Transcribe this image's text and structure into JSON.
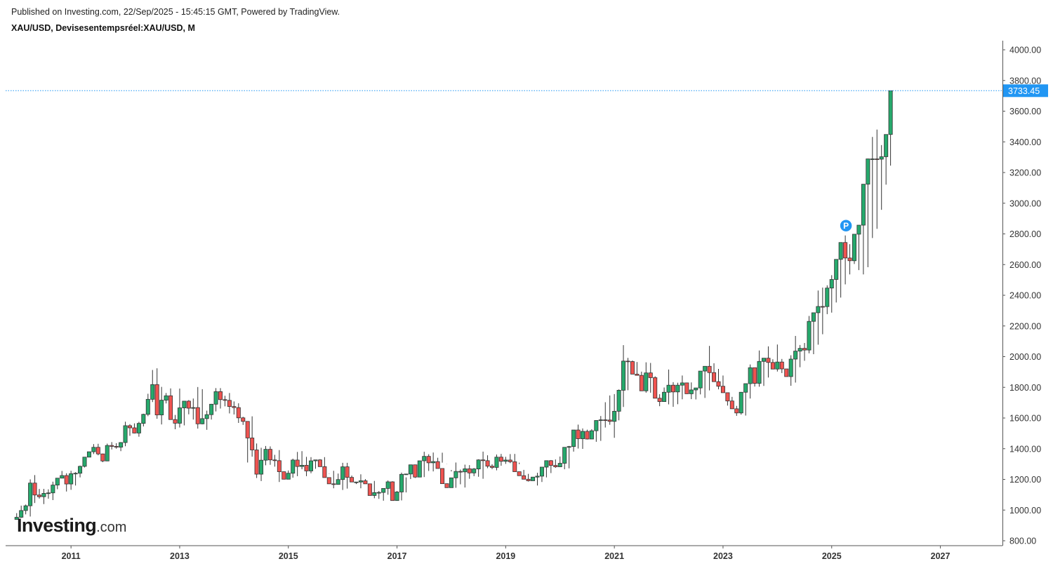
{
  "header": {
    "published": "Published on Investing.com, 22/Sep/2025 - 15:45:15 GMT, Powered by TradingView.",
    "symbol_line": "XAU/USD, Devisesentempsréel:XAU/USD, M"
  },
  "logo": {
    "main": "Investing",
    "suffix": ".com"
  },
  "colors": {
    "up": "#26a96c",
    "down": "#ef5350",
    "last_price_bg": "#2196f3",
    "axis": "#888888"
  },
  "chart_data": {
    "type": "candlestick",
    "interval": "M",
    "symbol": "XAU/USD",
    "ylim": [
      740,
      4080
    ],
    "y_ticks": [
      "800.00",
      "1000.00",
      "1200.00",
      "1400.00",
      "1600.00",
      "1800.00",
      "2000.00",
      "2200.00",
      "2400.00",
      "2600.00",
      "2800.00",
      "3000.00",
      "3200.00",
      "3400.00",
      "3600.00",
      "3800.00",
      "4000.00"
    ],
    "x_ticks": [
      "2011",
      "2013",
      "2015",
      "2017",
      "2019",
      "2021",
      "2023",
      "2025",
      "2027"
    ],
    "last_price": 3733.45,
    "last_price_label": "3733.45",
    "marker_label": "P",
    "marker_date": "2025-04",
    "closes": [
      953,
      997,
      1028,
      1176,
      1098,
      1087,
      1109,
      1112,
      1163,
      1208,
      1225,
      1170,
      1237,
      1240,
      1285,
      1345,
      1380,
      1409,
      1366,
      1320,
      1421,
      1415,
      1410,
      1440,
      1550,
      1536,
      1502,
      1565,
      1624,
      1722,
      1818,
      1620,
      1716,
      1745,
      1590,
      1566,
      1666,
      1710,
      1664,
      1668,
      1562,
      1596,
      1622,
      1690,
      1772,
      1720,
      1715,
      1675,
      1668,
      1601,
      1578,
      1470,
      1392,
      1234,
      1325,
      1396,
      1327,
      1322,
      1250,
      1201,
      1240,
      1326,
      1284,
      1292,
      1255,
      1321,
      1327,
      1283,
      1212,
      1171,
      1167,
      1199,
      1282,
      1213,
      1183,
      1183,
      1191,
      1171,
      1095,
      1114,
      1115,
      1141,
      1184,
      1062,
      1118,
      1233,
      1235,
      1295,
      1215,
      1321,
      1350,
      1308,
      1316,
      1271,
      1172,
      1146,
      1210,
      1252,
      1249,
      1269,
      1242,
      1268,
      1327,
      1322,
      1286,
      1278,
      1345,
      1318,
      1326,
      1315,
      1250,
      1224,
      1201,
      1191,
      1215,
      1221,
      1280,
      1322,
      1291,
      1282,
      1305,
      1409,
      1414,
      1522,
      1465,
      1513,
      1463,
      1517,
      1584,
      1588,
      1587,
      1578,
      1644,
      1781,
      1971,
      1968,
      1886,
      1878,
      1777,
      1894,
      1863,
      1729,
      1707,
      1768,
      1814,
      1770,
      1814,
      1829,
      1758,
      1783,
      1796,
      1906,
      1937,
      1896,
      1837,
      1807,
      1765,
      1711,
      1660,
      1633,
      1768,
      1824,
      1928,
      1826,
      1969,
      1990,
      1962,
      1919,
      1965,
      1920,
      1870,
      1984,
      2036,
      2054,
      2043,
      2230,
      2286,
      2327,
      2326,
      2447,
      2503,
      2634,
      2744,
      2643,
      2625,
      2798,
      2857,
      3124,
      3289,
      3289,
      3287,
      3303,
      3448,
      3733
    ],
    "highs": [
      980,
      1029,
      1036,
      1200,
      1228,
      1138,
      1138,
      1135,
      1185,
      1208,
      1255,
      1240,
      1256,
      1247,
      1290,
      1346,
      1380,
      1430,
      1432,
      1368,
      1433,
      1443,
      1436,
      1443,
      1576,
      1560,
      1565,
      1575,
      1628,
      1758,
      1913,
      1924,
      1803,
      1763,
      1793,
      1620,
      1792,
      1690,
      1717,
      1727,
      1802,
      1788,
      1648,
      1692,
      1795,
      1795,
      1745,
      1763,
      1708,
      1696,
      1608,
      1495,
      1611,
      1434,
      1406,
      1418,
      1415,
      1360,
      1391,
      1251,
      1258,
      1335,
      1379,
      1384,
      1347,
      1345,
      1327,
      1332,
      1345,
      1237,
      1256,
      1238,
      1308,
      1308,
      1225,
      1184,
      1233,
      1202,
      1169,
      1190,
      1124,
      1142,
      1193,
      1188,
      1124,
      1244,
      1213,
      1295,
      1270,
      1321,
      1380,
      1364,
      1375,
      1341,
      1374,
      1302,
      1252,
      1310,
      1264,
      1296,
      1293,
      1274,
      1331,
      1381,
      1357,
      1299,
      1362,
      1366,
      1347,
      1365,
      1366,
      1309,
      1262,
      1236,
      1215,
      1243,
      1244,
      1322,
      1326,
      1330,
      1349,
      1383,
      1418,
      1451,
      1557,
      1532,
      1524,
      1527,
      1564,
      1613,
      1703,
      1747,
      1756,
      1786,
      2075,
      1992,
      1975,
      1965,
      1902,
      1963,
      1959,
      1872,
      1755,
      1799,
      1916,
      1834,
      1830,
      1877,
      1820,
      1832,
      1787,
      1828,
      1915,
      2070,
      1957,
      1920,
      1877,
      1723,
      1738,
      1679,
      1714,
      1786,
      1949,
      1829,
      2040,
      1984,
      2067,
      1983,
      2079,
      1985,
      1887,
      2009,
      2135,
      2076,
      2089,
      2265,
      2284,
      2431,
      2450,
      2465,
      2531,
      2633,
      2690,
      2790,
      2733,
      2722,
      2817,
      2954,
      3167,
      3432,
      3480,
      3379,
      3391,
      3452,
      3507,
      3759
    ],
    "lows": [
      939,
      949,
      972,
      958,
      1046,
      1075,
      1039,
      1074,
      1065,
      1136,
      1218,
      1121,
      1132,
      1160,
      1213,
      1278,
      1368,
      1365,
      1357,
      1312,
      1338,
      1395,
      1400,
      1384,
      1416,
      1484,
      1500,
      1478,
      1545,
      1612,
      1704,
      1595,
      1558,
      1695,
      1684,
      1527,
      1538,
      1552,
      1624,
      1590,
      1531,
      1559,
      1523,
      1590,
      1643,
      1662,
      1676,
      1630,
      1623,
      1568,
      1555,
      1310,
      1348,
      1209,
      1189,
      1292,
      1295,
      1283,
      1183,
      1202,
      1206,
      1211,
      1221,
      1266,
      1221,
      1240,
      1269,
      1307,
      1274,
      1239,
      1142,
      1167,
      1131,
      1140,
      1195,
      1170,
      1142,
      1181,
      1131,
      1077,
      1073,
      1061,
      1100,
      1088,
      1077,
      1063,
      1115,
      1202,
      1209,
      1216,
      1215,
      1255,
      1252,
      1302,
      1309,
      1303,
      1261,
      1145,
      1168,
      1147,
      1204,
      1221,
      1217,
      1204,
      1273,
      1267,
      1259,
      1289,
      1301,
      1306,
      1282,
      1300,
      1210,
      1186,
      1208,
      1160,
      1183,
      1213,
      1241,
      1275,
      1280,
      1266,
      1272,
      1381,
      1401,
      1399,
      1460,
      1480,
      1445,
      1451,
      1538,
      1556,
      1471,
      1585,
      1672,
      1781,
      1900,
      1877,
      1848,
      1765,
      1765,
      1786,
      1677,
      1743,
      1689,
      1673,
      1690,
      1722,
      1758,
      1723,
      1721,
      1754,
      1731,
      1780,
      1888,
      1787,
      1807,
      1681,
      1680,
      1614,
      1622,
      1616,
      1727,
      1805,
      1804,
      1809,
      1864,
      1932,
      1903,
      1893,
      1902,
      1810,
      1831,
      1931,
      1973,
      2022,
      2016,
      2078,
      2146,
      2277,
      2287,
      2353,
      2385,
      2471,
      2536,
      2604,
      2564,
      2536,
      2583,
      2773,
      2833,
      2957,
      3121,
      3245,
      3120,
      3248,
      3268,
      3268,
      3311,
      3404
    ]
  }
}
